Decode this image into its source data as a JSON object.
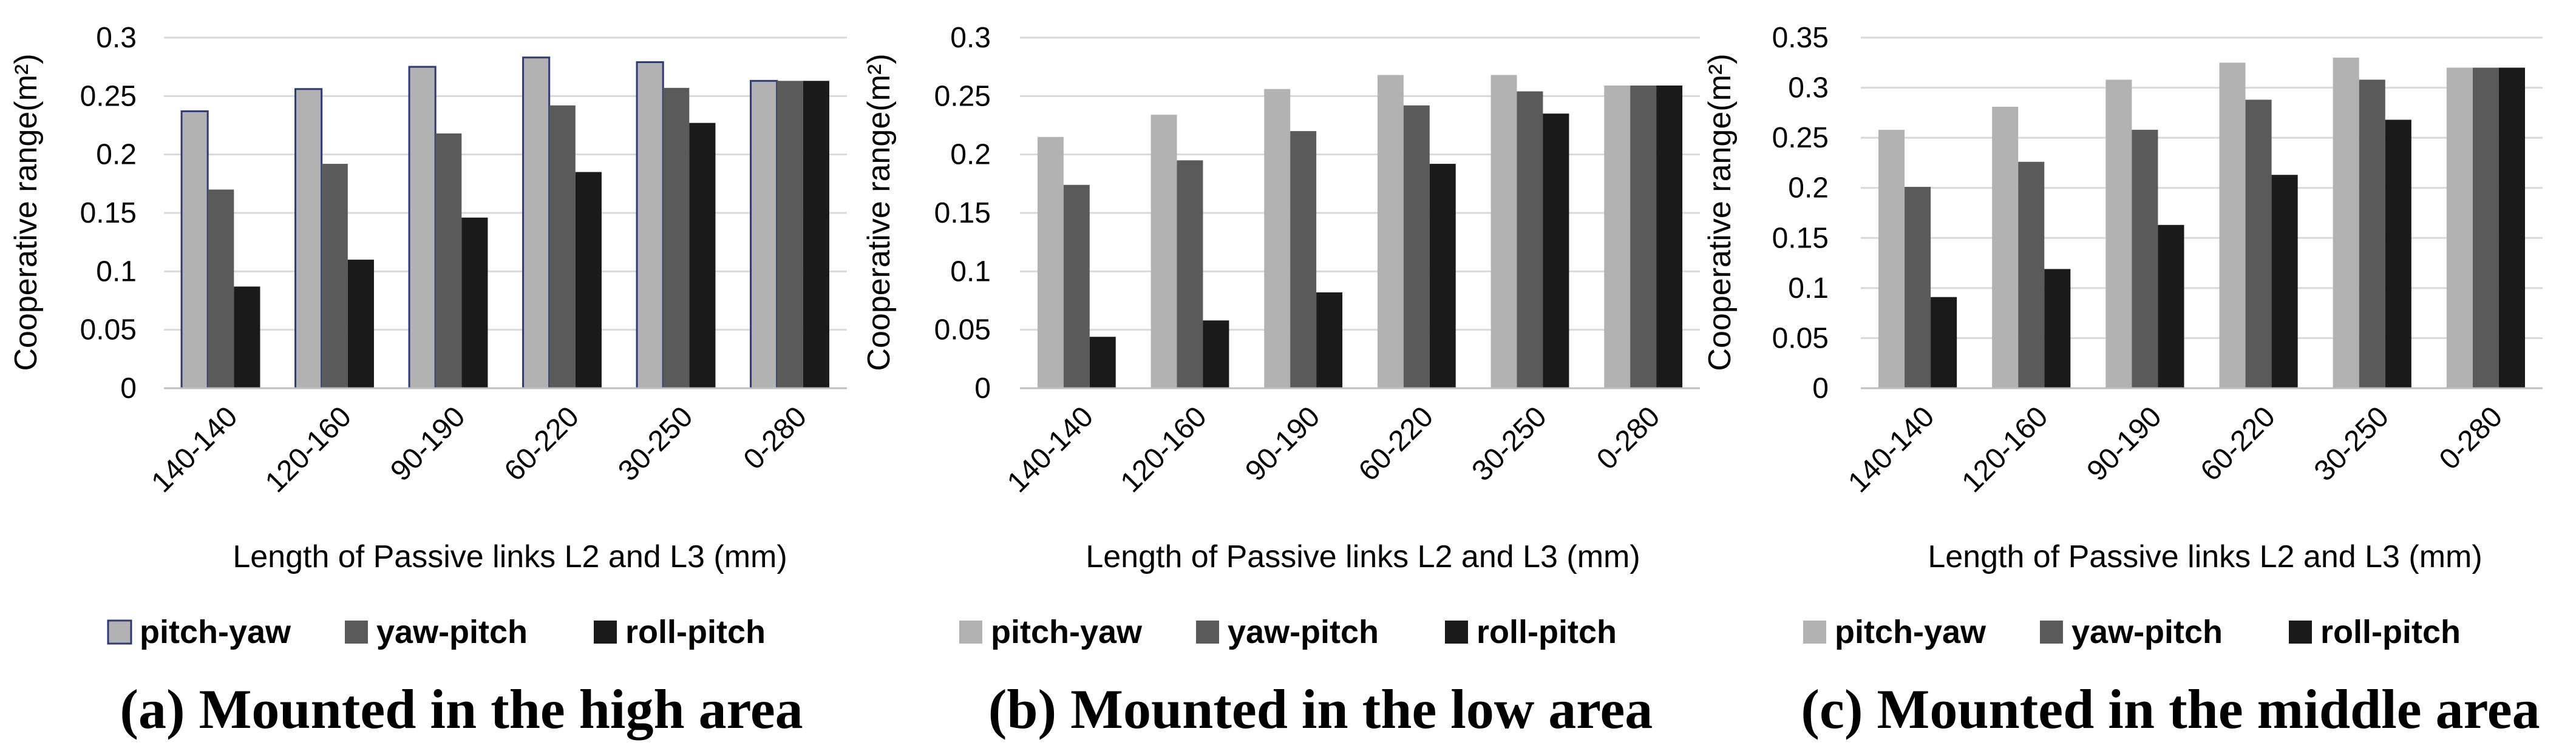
{
  "chart_data": [
    {
      "type": "bar",
      "caption": "(a) Mounted in the high area",
      "xlabel": "Length of Passive links L2 and L3 (mm)",
      "ylabel": "Cooperative range(m²)",
      "ylim": [
        0,
        0.3
      ],
      "yticks": [
        "0",
        "0.05",
        "0.1",
        "0.15",
        "0.2",
        "0.25",
        "0.3"
      ],
      "grid": true,
      "legend_position": "bottom",
      "categories": [
        "140-140",
        "120-160",
        "90-190",
        "60-220",
        "30-250",
        "0-280"
      ],
      "series": [
        {
          "name": "pitch-yaw",
          "color": "#b2b2b2",
          "values": [
            0.237,
            0.256,
            0.275,
            0.283,
            0.279,
            0.263
          ]
        },
        {
          "name": "yaw-pitch",
          "color": "#5a5a5a",
          "values": [
            0.17,
            0.192,
            0.218,
            0.242,
            0.257,
            0.263
          ]
        },
        {
          "name": "roll-pitch",
          "color": "#1a1a1a",
          "values": [
            0.087,
            0.11,
            0.146,
            0.185,
            0.227,
            0.263
          ]
        }
      ]
    },
    {
      "type": "bar",
      "caption": "(b) Mounted in the low area",
      "xlabel": "Length of Passive links L2 and L3 (mm)",
      "ylabel": "Cooperative range(m²)",
      "ylim": [
        0,
        0.3
      ],
      "yticks": [
        "0",
        "0.05",
        "0.1",
        "0.15",
        "0.2",
        "0.25",
        "0.3"
      ],
      "grid": true,
      "legend_position": "bottom",
      "categories": [
        "140-140",
        "120-160",
        "90-190",
        "60-220",
        "30-250",
        "0-280"
      ],
      "series": [
        {
          "name": "pitch-yaw",
          "color": "#b2b2b2",
          "values": [
            0.215,
            0.234,
            0.256,
            0.268,
            0.268,
            0.259
          ]
        },
        {
          "name": "yaw-pitch",
          "color": "#5a5a5a",
          "values": [
            0.174,
            0.195,
            0.22,
            0.242,
            0.254,
            0.259
          ]
        },
        {
          "name": "roll-pitch",
          "color": "#1a1a1a",
          "values": [
            0.044,
            0.058,
            0.082,
            0.192,
            0.235,
            0.259
          ]
        }
      ]
    },
    {
      "type": "bar",
      "caption": "(c) Mounted in the middle area",
      "xlabel": "Length of Passive links L2 and L3 (mm)",
      "ylabel": "Cooperative range(m²)",
      "ylim": [
        0,
        0.35
      ],
      "yticks": [
        "0",
        "0.05",
        "0.1",
        "0.15",
        "0.2",
        "0.25",
        "0.3",
        "0.35"
      ],
      "grid": true,
      "legend_position": "bottom",
      "categories": [
        "140-140",
        "120-160",
        "90-190",
        "60-220",
        "30-250",
        "0-280"
      ],
      "series": [
        {
          "name": "pitch-yaw",
          "color": "#b2b2b2",
          "values": [
            0.258,
            0.281,
            0.308,
            0.325,
            0.33,
            0.32
          ]
        },
        {
          "name": "yaw-pitch",
          "color": "#5a5a5a",
          "values": [
            0.201,
            0.226,
            0.258,
            0.288,
            0.308,
            0.32
          ]
        },
        {
          "name": "roll-pitch",
          "color": "#1a1a1a",
          "values": [
            0.091,
            0.119,
            0.163,
            0.213,
            0.268,
            0.32
          ]
        }
      ]
    }
  ]
}
